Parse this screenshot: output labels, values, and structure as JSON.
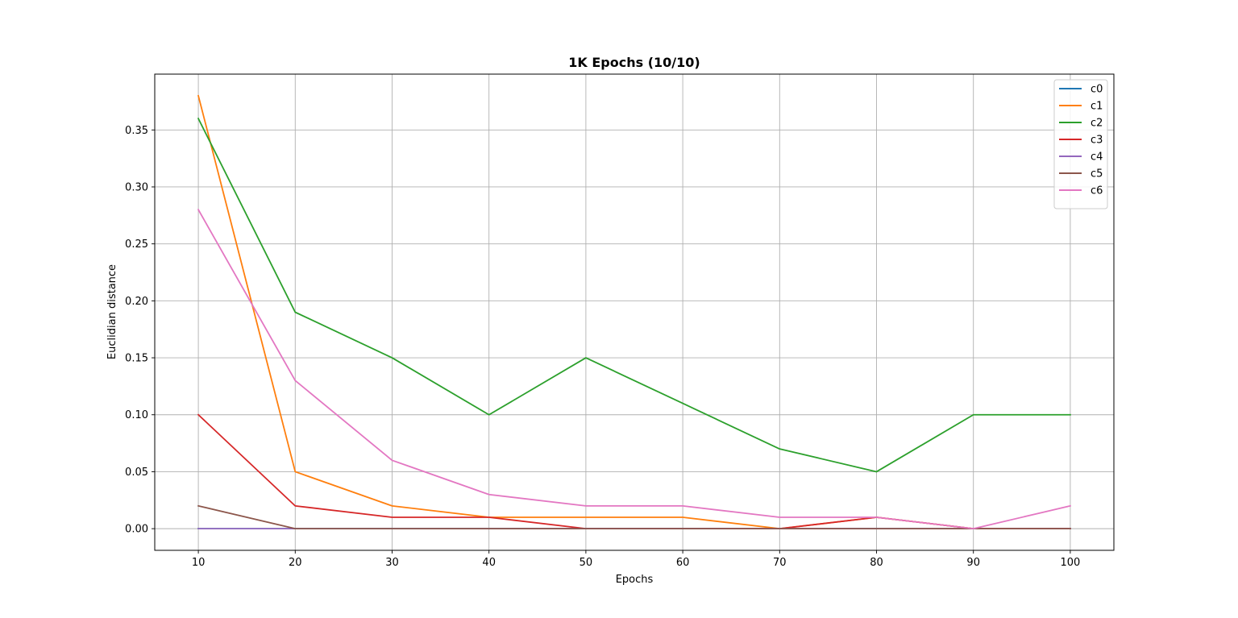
{
  "chart_data": {
    "type": "line",
    "title": "1K Epochs (10/10)",
    "xlabel": "Epochs",
    "ylabel": "Euclidian distance",
    "x": [
      10,
      20,
      30,
      40,
      50,
      60,
      70,
      80,
      90,
      100
    ],
    "x_ticks": [
      "10",
      "20",
      "30",
      "40",
      "50",
      "60",
      "70",
      "80",
      "90",
      "100"
    ],
    "xlim": [
      5.5,
      104.5
    ],
    "ylim": [
      -0.019,
      0.399
    ],
    "y_ticks": [
      {
        "value": 0.0,
        "label": "0.00"
      },
      {
        "value": 0.05,
        "label": "0.05"
      },
      {
        "value": 0.1,
        "label": "0.10"
      },
      {
        "value": 0.15,
        "label": "0.15"
      },
      {
        "value": 0.2,
        "label": "0.20"
      },
      {
        "value": 0.25,
        "label": "0.25"
      },
      {
        "value": 0.3,
        "label": "0.30"
      },
      {
        "value": 0.35,
        "label": "0.35"
      }
    ],
    "grid": true,
    "legend_position": "top-right",
    "series": [
      {
        "name": "c0",
        "color": "#1f77b4",
        "values": [
          0,
          0,
          0,
          0,
          0,
          0,
          0,
          0,
          0,
          0
        ]
      },
      {
        "name": "c1",
        "color": "#ff7f0e",
        "values": [
          0.38,
          0.05,
          0.02,
          0.01,
          0.01,
          0.01,
          0.0,
          0.01,
          0.0,
          0.0
        ]
      },
      {
        "name": "c2",
        "color": "#2ca02c",
        "values": [
          0.36,
          0.19,
          0.15,
          0.1,
          0.15,
          0.11,
          0.07,
          0.05,
          0.1,
          0.1
        ]
      },
      {
        "name": "c3",
        "color": "#d62728",
        "values": [
          0.1,
          0.02,
          0.01,
          0.01,
          0.0,
          0.0,
          0.0,
          0.01,
          0.0,
          0.0
        ]
      },
      {
        "name": "c4",
        "color": "#9467bd",
        "values": [
          0,
          0,
          0,
          0,
          0,
          0,
          0,
          0,
          0,
          0
        ]
      },
      {
        "name": "c5",
        "color": "#8c564b",
        "values": [
          0.02,
          0,
          0,
          0,
          0,
          0,
          0,
          0,
          0,
          0
        ]
      },
      {
        "name": "c6",
        "color": "#e377c2",
        "values": [
          0.28,
          0.13,
          0.06,
          0.03,
          0.02,
          0.02,
          0.01,
          0.01,
          0.0,
          0.02
        ]
      }
    ]
  }
}
